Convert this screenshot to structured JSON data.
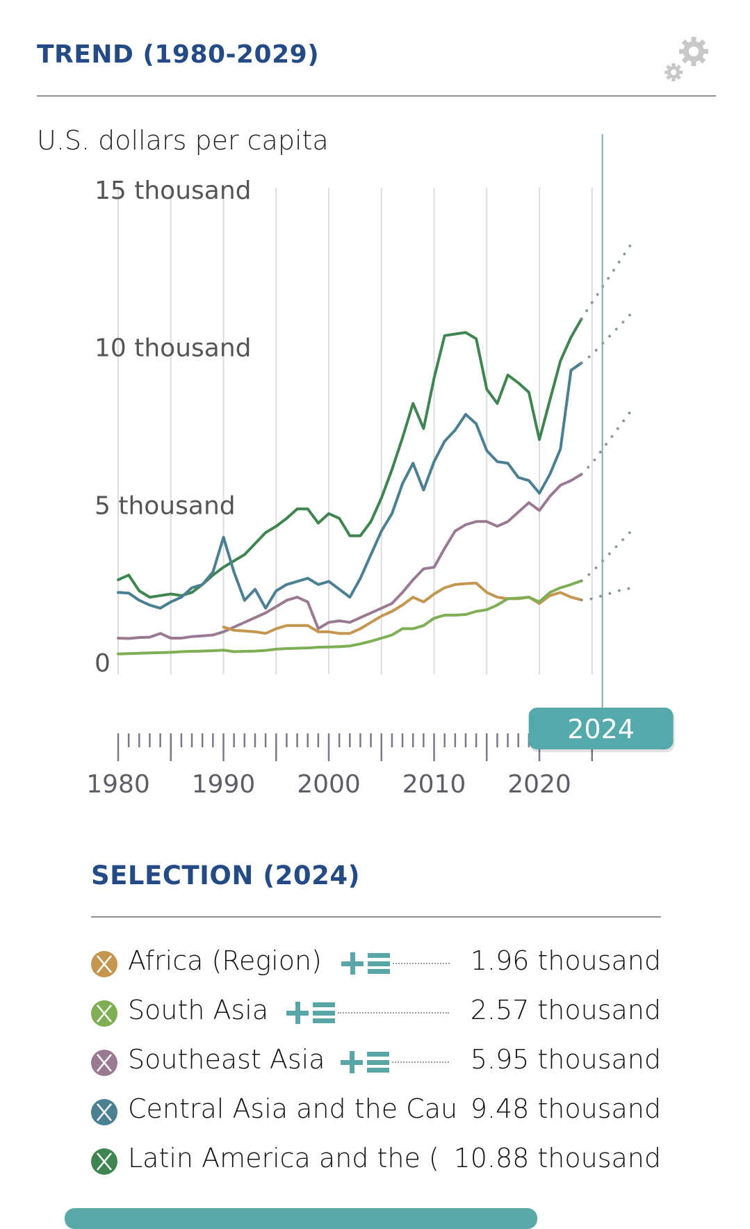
{
  "header": {
    "title": "TREND (1980-2029)",
    "settings_icon": "gears-icon"
  },
  "selection": {
    "title": "SELECTION (2024)",
    "rows": [
      {
        "name": "Africa (Region)",
        "value": "1.96 thousand",
        "color": "#c4964f",
        "has_tools": true
      },
      {
        "name": "South Asia",
        "value": "2.57 thousand",
        "color": "#7fae55",
        "has_tools": true
      },
      {
        "name": "Southeast Asia",
        "value": "5.95 thousand",
        "color": "#9a7a93",
        "has_tools": true
      },
      {
        "name": "Central Asia and the Cau",
        "value": "9.48 thousand",
        "color": "#4b7f92",
        "has_tools": false
      },
      {
        "name": "Latin America and the (",
        "value": "10.88 thousand",
        "color": "#3f8551",
        "has_tools": false
      }
    ]
  },
  "chart_data": {
    "type": "line",
    "title": "TREND (1980-2029)",
    "ylabel": "U.S. dollars per capita",
    "xlabel": "",
    "ylim": [
      0,
      15000
    ],
    "xlim": [
      1980,
      2029
    ],
    "y_ticks": [
      {
        "value": 0,
        "label": "0"
      },
      {
        "value": 5000,
        "label": "5 thousand"
      },
      {
        "value": 10000,
        "label": "10 thousand"
      },
      {
        "value": 15000,
        "label": "15 thousand"
      }
    ],
    "x_ticks": [
      {
        "value": 1980,
        "label": "1980"
      },
      {
        "value": 1990,
        "label": "1990"
      },
      {
        "value": 2000,
        "label": "2000"
      },
      {
        "value": 2010,
        "label": "2010"
      },
      {
        "value": 2020,
        "label": "2020"
      }
    ],
    "grid": "vertical every 5 years",
    "selected_year": 2024,
    "selected_year_label": "2024",
    "projection_start": 2024,
    "series": [
      {
        "name": "Latin America and the Caribbean",
        "color": "#3f8551",
        "start_year": 1980,
        "values": [
          2600,
          2750,
          2250,
          2050,
          2100,
          2150,
          2100,
          2200,
          2450,
          2750,
          3000,
          3200,
          3400,
          3750,
          4100,
          4300,
          4550,
          4850,
          4850,
          4400,
          4700,
          4550,
          4000,
          4000,
          4450,
          5200,
          6100,
          7100,
          8200,
          7400,
          9000,
          10350,
          10400,
          10450,
          10250,
          8650,
          8200,
          9100,
          8850,
          8550,
          7050,
          8300,
          9550,
          10300,
          10880,
          11400,
          11900,
          12400,
          12900,
          13400
        ]
      },
      {
        "name": "Central Asia and the Caucasus",
        "color": "#4b7f92",
        "start_year": 1980,
        "values": [
          2200,
          2180,
          1950,
          1800,
          1700,
          1900,
          2050,
          2350,
          2450,
          2850,
          3950,
          2850,
          1950,
          2300,
          1700,
          2250,
          2450,
          2550,
          2650,
          2450,
          2550,
          2300,
          2050,
          2650,
          3400,
          4150,
          4700,
          5650,
          6300,
          5450,
          6350,
          7000,
          7350,
          7850,
          7550,
          6700,
          6350,
          6300,
          5850,
          5750,
          5350,
          5950,
          6750,
          9250,
          9480,
          9750,
          10100,
          10450,
          10800,
          11150
        ]
      },
      {
        "name": "Southeast Asia",
        "color": "#9a7a93",
        "start_year": 1980,
        "values": [
          750,
          740,
          770,
          780,
          900,
          750,
          750,
          800,
          820,
          850,
          950,
          1100,
          1250,
          1400,
          1550,
          1750,
          1950,
          2050,
          1900,
          1050,
          1250,
          1300,
          1250,
          1400,
          1550,
          1700,
          1850,
          2200,
          2600,
          2950,
          3000,
          3600,
          4150,
          4350,
          4450,
          4450,
          4300,
          4450,
          4750,
          5050,
          4800,
          5250,
          5600,
          5750,
          5950,
          6300,
          6750,
          7200,
          7650,
          8100
        ]
      },
      {
        "name": "Africa (Region)",
        "color": "#c4964f",
        "start_year": 1990,
        "values": [
          1100,
          1000,
          980,
          950,
          900,
          1050,
          1150,
          1150,
          1150,
          950,
          950,
          900,
          900,
          1050,
          1250,
          1450,
          1600,
          1800,
          2050,
          1900,
          2150,
          2350,
          2450,
          2480,
          2500,
          2200,
          2050,
          2000,
          2000,
          2050,
          1850,
          2100,
          2200,
          2050,
          1960,
          2000,
          2100,
          2200,
          2300,
          2350
        ]
      },
      {
        "name": "South Asia",
        "color": "#7fae55",
        "start_year": 1980,
        "values": [
          250,
          260,
          270,
          280,
          290,
          300,
          320,
          330,
          340,
          350,
          370,
          320,
          330,
          340,
          360,
          400,
          420,
          430,
          440,
          460,
          470,
          480,
          500,
          570,
          650,
          750,
          850,
          1050,
          1050,
          1150,
          1380,
          1480,
          1480,
          1500,
          1600,
          1650,
          1800,
          2000,
          2020,
          2050,
          1900,
          2200,
          2350,
          2450,
          2570,
          2850,
          3200,
          3550,
          3900,
          4250
        ]
      }
    ]
  }
}
